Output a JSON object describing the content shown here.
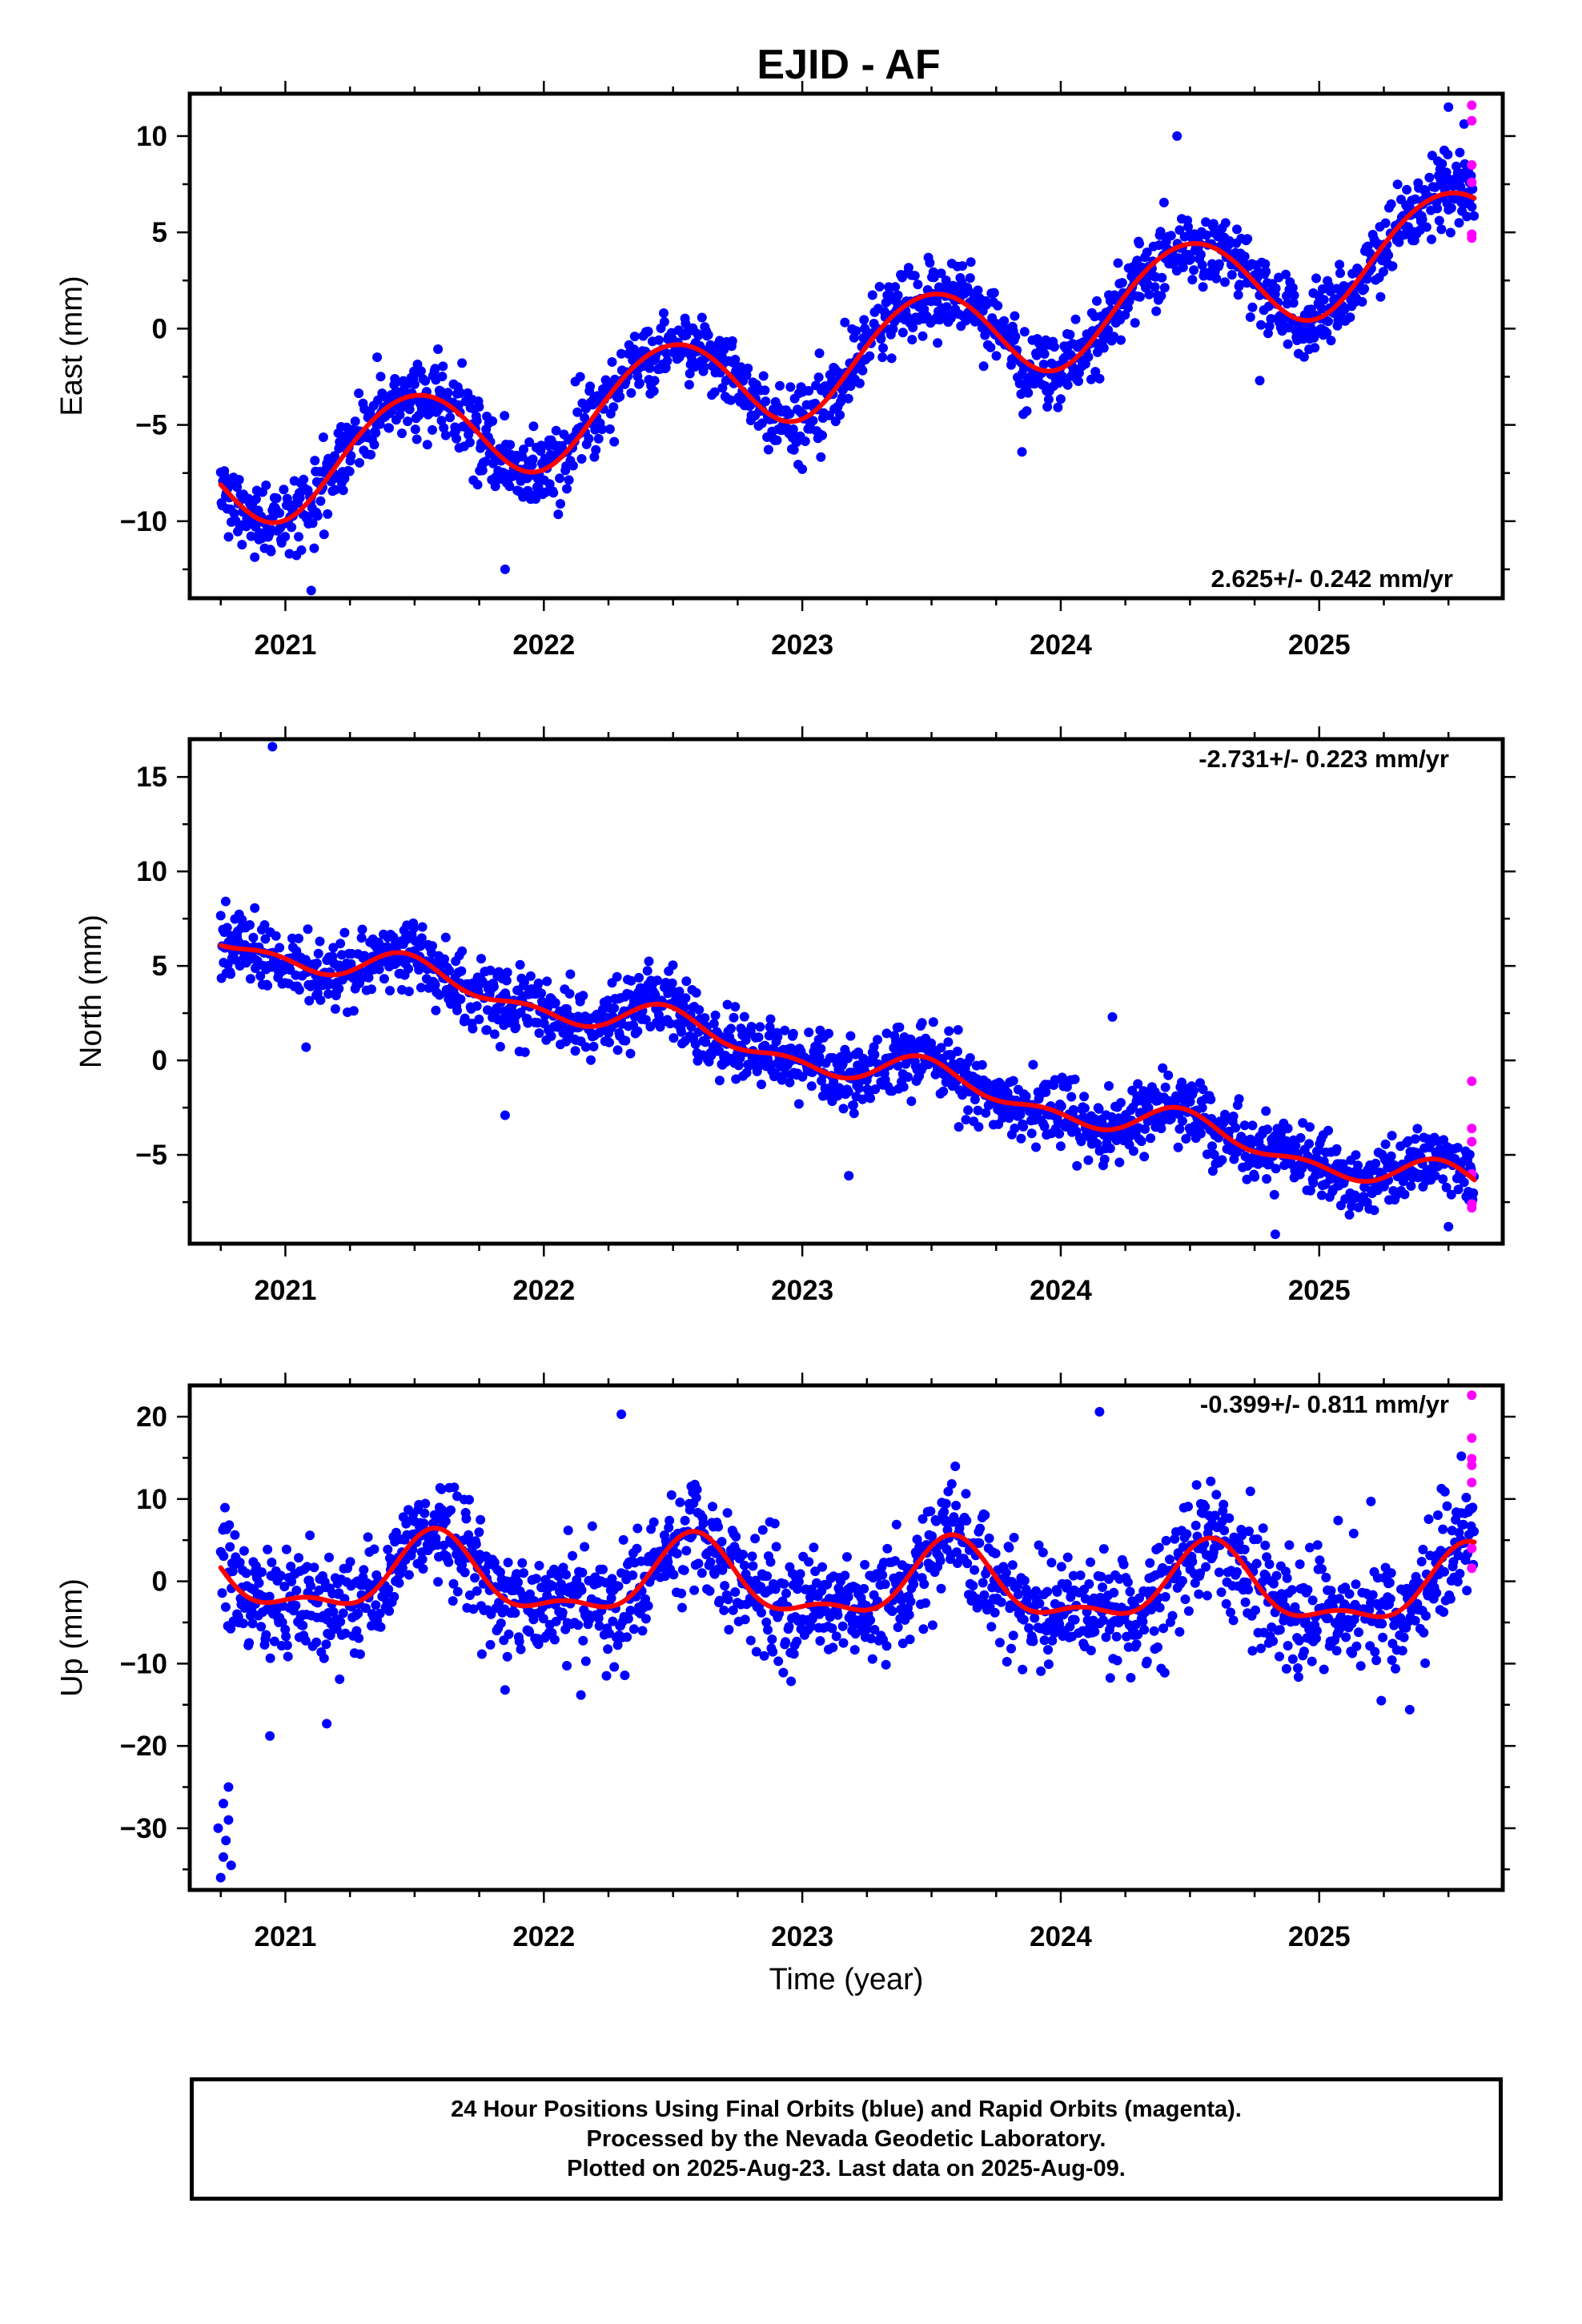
{
  "title": "EJID - AF",
  "xlabel": "Time (year)",
  "caption": {
    "line1": "24 Hour Positions Using Final Orbits (blue) and Rapid Orbits (magenta).",
    "line2": "Processed by the Nevada Geodetic Laboratory.",
    "line3": "Plotted on 2025-Aug-23. Last data on 2025-Aug-09."
  },
  "colors": {
    "final_orbits": "#0000ff",
    "rapid_orbits": "#ff00ff",
    "model_fit": "#ff0000"
  },
  "chart_data": [
    {
      "type": "scatter",
      "component": "East",
      "ylabel": "East (mm)",
      "rate_text": "2.625+/- 0.242 mm/yr",
      "rate_position": "bottom-right",
      "xlim": [
        2020.63,
        2025.71
      ],
      "ylim": [
        -14.0,
        12.2
      ],
      "x_ticks": [
        2021,
        2022,
        2023,
        2024,
        2025
      ],
      "x_tick_labels": [
        "2021",
        "2022",
        "2023",
        "2024",
        "2025"
      ],
      "y_ticks": [
        -10,
        -5,
        0,
        5,
        10
      ],
      "y_tick_labels": [
        "−10",
        "−5",
        "0",
        "5",
        "10"
      ],
      "model": {
        "start": 2020.75,
        "end": 2025.6,
        "offset": -7.9,
        "trend": 2.625,
        "trend_ref": 2020.75,
        "annual_amp": 2.6,
        "annual_peak": 2020.48,
        "semiannual_amp": 0.15,
        "semiannual_peak": 2020.2
      },
      "noise": {
        "sigma": 0.95,
        "outliers": [
          [
            2021.1,
            -13.6
          ],
          [
            2020.9,
            -10.6
          ],
          [
            2021.85,
            -12.5
          ],
          [
            2023.0,
            -7.3
          ],
          [
            2023.85,
            -6.4
          ],
          [
            2024.77,
            -2.7
          ],
          [
            2024.45,
            10.0
          ],
          [
            2025.5,
            11.5
          ]
        ]
      },
      "rapid": [
        [
          2025.59,
          11.6
        ],
        [
          2025.59,
          10.8
        ],
        [
          2025.59,
          8.5
        ],
        [
          2025.59,
          7.6
        ],
        [
          2025.59,
          4.9
        ],
        [
          2025.59,
          4.7
        ]
      ]
    },
    {
      "type": "scatter",
      "component": "North",
      "ylabel": "North (mm)",
      "rate_text": "-2.731+/- 0.223 mm/yr",
      "rate_position": "top-right",
      "xlim": [
        2020.63,
        2025.71
      ],
      "ylim": [
        -9.7,
        17.0
      ],
      "x_ticks": [
        2021,
        2022,
        2023,
        2024,
        2025
      ],
      "x_tick_labels": [
        "2021",
        "2022",
        "2023",
        "2024",
        "2025"
      ],
      "y_ticks": [
        -5,
        0,
        5,
        10,
        15
      ],
      "y_tick_labels": [
        "−5",
        "0",
        "5",
        "10",
        "15"
      ],
      "model": {
        "start": 2020.75,
        "end": 2025.6,
        "offset": 6.45,
        "trend": -2.731,
        "trend_ref": 2020.75,
        "annual_amp": 0.75,
        "annual_peak": 2020.5,
        "semiannual_amp": 0.45,
        "semiannual_peak": 2020.45
      },
      "noise": {
        "sigma": 0.9,
        "outliers": [
          [
            2020.95,
            16.6
          ],
          [
            2021.08,
            0.7
          ],
          [
            2021.85,
            -2.9
          ],
          [
            2023.18,
            -6.1
          ],
          [
            2024.2,
            2.3
          ],
          [
            2024.83,
            -9.2
          ],
          [
            2025.5,
            -8.8
          ]
        ]
      },
      "rapid": [
        [
          2025.59,
          -1.1
        ],
        [
          2025.59,
          -3.6
        ],
        [
          2025.59,
          -4.3
        ],
        [
          2025.59,
          -6.0
        ],
        [
          2025.59,
          -7.6
        ],
        [
          2025.59,
          -7.8
        ]
      ]
    },
    {
      "type": "scatter",
      "component": "Up",
      "ylabel": "Up (mm)",
      "rate_text": "-0.399+/- 0.811 mm/yr",
      "rate_position": "top-right",
      "xlim": [
        2020.63,
        2025.71
      ],
      "ylim": [
        -37.5,
        23.8
      ],
      "x_ticks": [
        2021,
        2022,
        2023,
        2024,
        2025
      ],
      "x_tick_labels": [
        "2021",
        "2022",
        "2023",
        "2024",
        "2025"
      ],
      "y_ticks": [
        -30,
        -20,
        -10,
        0,
        10,
        20
      ],
      "y_tick_labels": [
        "−30",
        "−20",
        "−10",
        "0",
        "10",
        "20"
      ],
      "model": {
        "start": 2020.75,
        "end": 2025.6,
        "offset": 0.6,
        "trend": -0.399,
        "trend_ref": 2020.75,
        "annual_amp": 4.3,
        "annual_peak": 2020.58,
        "semiannual_amp": 1.9,
        "semiannual_peak": 2020.58
      },
      "noise": {
        "sigma": 3.4,
        "outliers": [
          [
            2020.75,
            -36.0
          ],
          [
            2020.76,
            -33.5
          ],
          [
            2020.77,
            -31.5
          ],
          [
            2020.78,
            -29.0
          ],
          [
            2020.76,
            -27.0
          ],
          [
            2020.78,
            -25.0
          ],
          [
            2020.79,
            -34.5
          ],
          [
            2020.74,
            -30.0
          ],
          [
            2020.94,
            -18.8
          ],
          [
            2021.16,
            -17.3
          ],
          [
            2022.3,
            20.3
          ],
          [
            2024.15,
            20.6
          ],
          [
            2025.35,
            -15.6
          ],
          [
            2025.55,
            15.2
          ],
          [
            2021.85,
            -13.2
          ],
          [
            2025.2,
            9.7
          ]
        ]
      },
      "rapid": [
        [
          2025.59,
          22.6
        ],
        [
          2025.59,
          17.4
        ],
        [
          2025.59,
          14.9
        ],
        [
          2025.59,
          14.1
        ],
        [
          2025.59,
          12.0
        ],
        [
          2025.59,
          4.0
        ],
        [
          2025.59,
          1.6
        ]
      ]
    }
  ]
}
